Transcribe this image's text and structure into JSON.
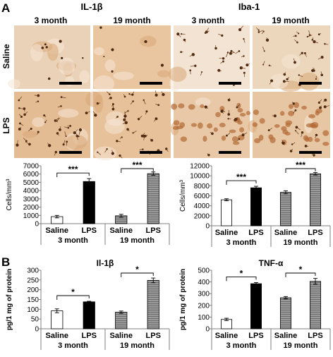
{
  "figure": {
    "panel_a_letter": "A",
    "panel_b_letter": "B",
    "micro_titles": [
      "IL-1β",
      "Iba-1"
    ],
    "column_labels": [
      "3 month",
      "19 month",
      "3 month",
      "19 month"
    ],
    "row_labels": [
      "Saline",
      "LPS"
    ]
  },
  "colors": {
    "saline_3m": "#ffffff",
    "lps_3m": "#000000",
    "saline_19m": "#8c8c8c",
    "lps_19m": "#8c8c8c",
    "stain_bg": "#e9c9a4",
    "stain_cell": "#5a3012"
  },
  "chart_data": [
    {
      "type": "bar",
      "title": "",
      "ylabel": "Cells/mm³",
      "ylim": [
        0,
        7000
      ],
      "yticks": [
        0,
        1000,
        2000,
        3000,
        4000,
        5000,
        6000,
        7000
      ],
      "categories": [
        "Saline",
        "LPS",
        "Saline",
        "LPS"
      ],
      "groups": [
        "3 month",
        "19 month"
      ],
      "values": [
        850,
        5100,
        950,
        6050
      ],
      "errors": [
        150,
        350,
        180,
        200
      ],
      "significance": [
        "***",
        "***"
      ]
    },
    {
      "type": "bar",
      "title": "",
      "ylabel": "Cells/mm³",
      "ylim": [
        0,
        12000
      ],
      "yticks": [
        0,
        2000,
        4000,
        6000,
        8000,
        10000,
        12000
      ],
      "categories": [
        "Saline",
        "LPS",
        "Saline",
        "LPS"
      ],
      "groups": [
        "3 month",
        "19 month"
      ],
      "values": [
        5200,
        7600,
        6700,
        10400
      ],
      "errors": [
        200,
        300,
        300,
        250
      ],
      "significance": [
        "***",
        "***"
      ]
    },
    {
      "type": "bar",
      "title": "Il-1β",
      "ylabel": "pg/1 mg of protein",
      "ylim": [
        0,
        300
      ],
      "yticks": [
        0,
        50,
        100,
        150,
        200,
        250,
        300
      ],
      "categories": [
        "Saline",
        "LPS",
        "Saline",
        "LPS"
      ],
      "groups": [
        "3 month",
        "19 month"
      ],
      "values": [
        92,
        138,
        85,
        248
      ],
      "errors": [
        10,
        3,
        6,
        12
      ],
      "significance": [
        "*",
        "*"
      ]
    },
    {
      "type": "bar",
      "title": "TNF-α",
      "ylabel": "pg/1 mg of protein",
      "ylim": [
        0,
        500
      ],
      "yticks": [
        0,
        100,
        200,
        300,
        400,
        500
      ],
      "categories": [
        "Saline",
        "LPS",
        "Saline",
        "LPS"
      ],
      "groups": [
        "3 month",
        "19 month"
      ],
      "values": [
        80,
        385,
        265,
        405
      ],
      "errors": [
        10,
        10,
        10,
        25
      ],
      "significance": [
        "*",
        "*"
      ]
    }
  ]
}
